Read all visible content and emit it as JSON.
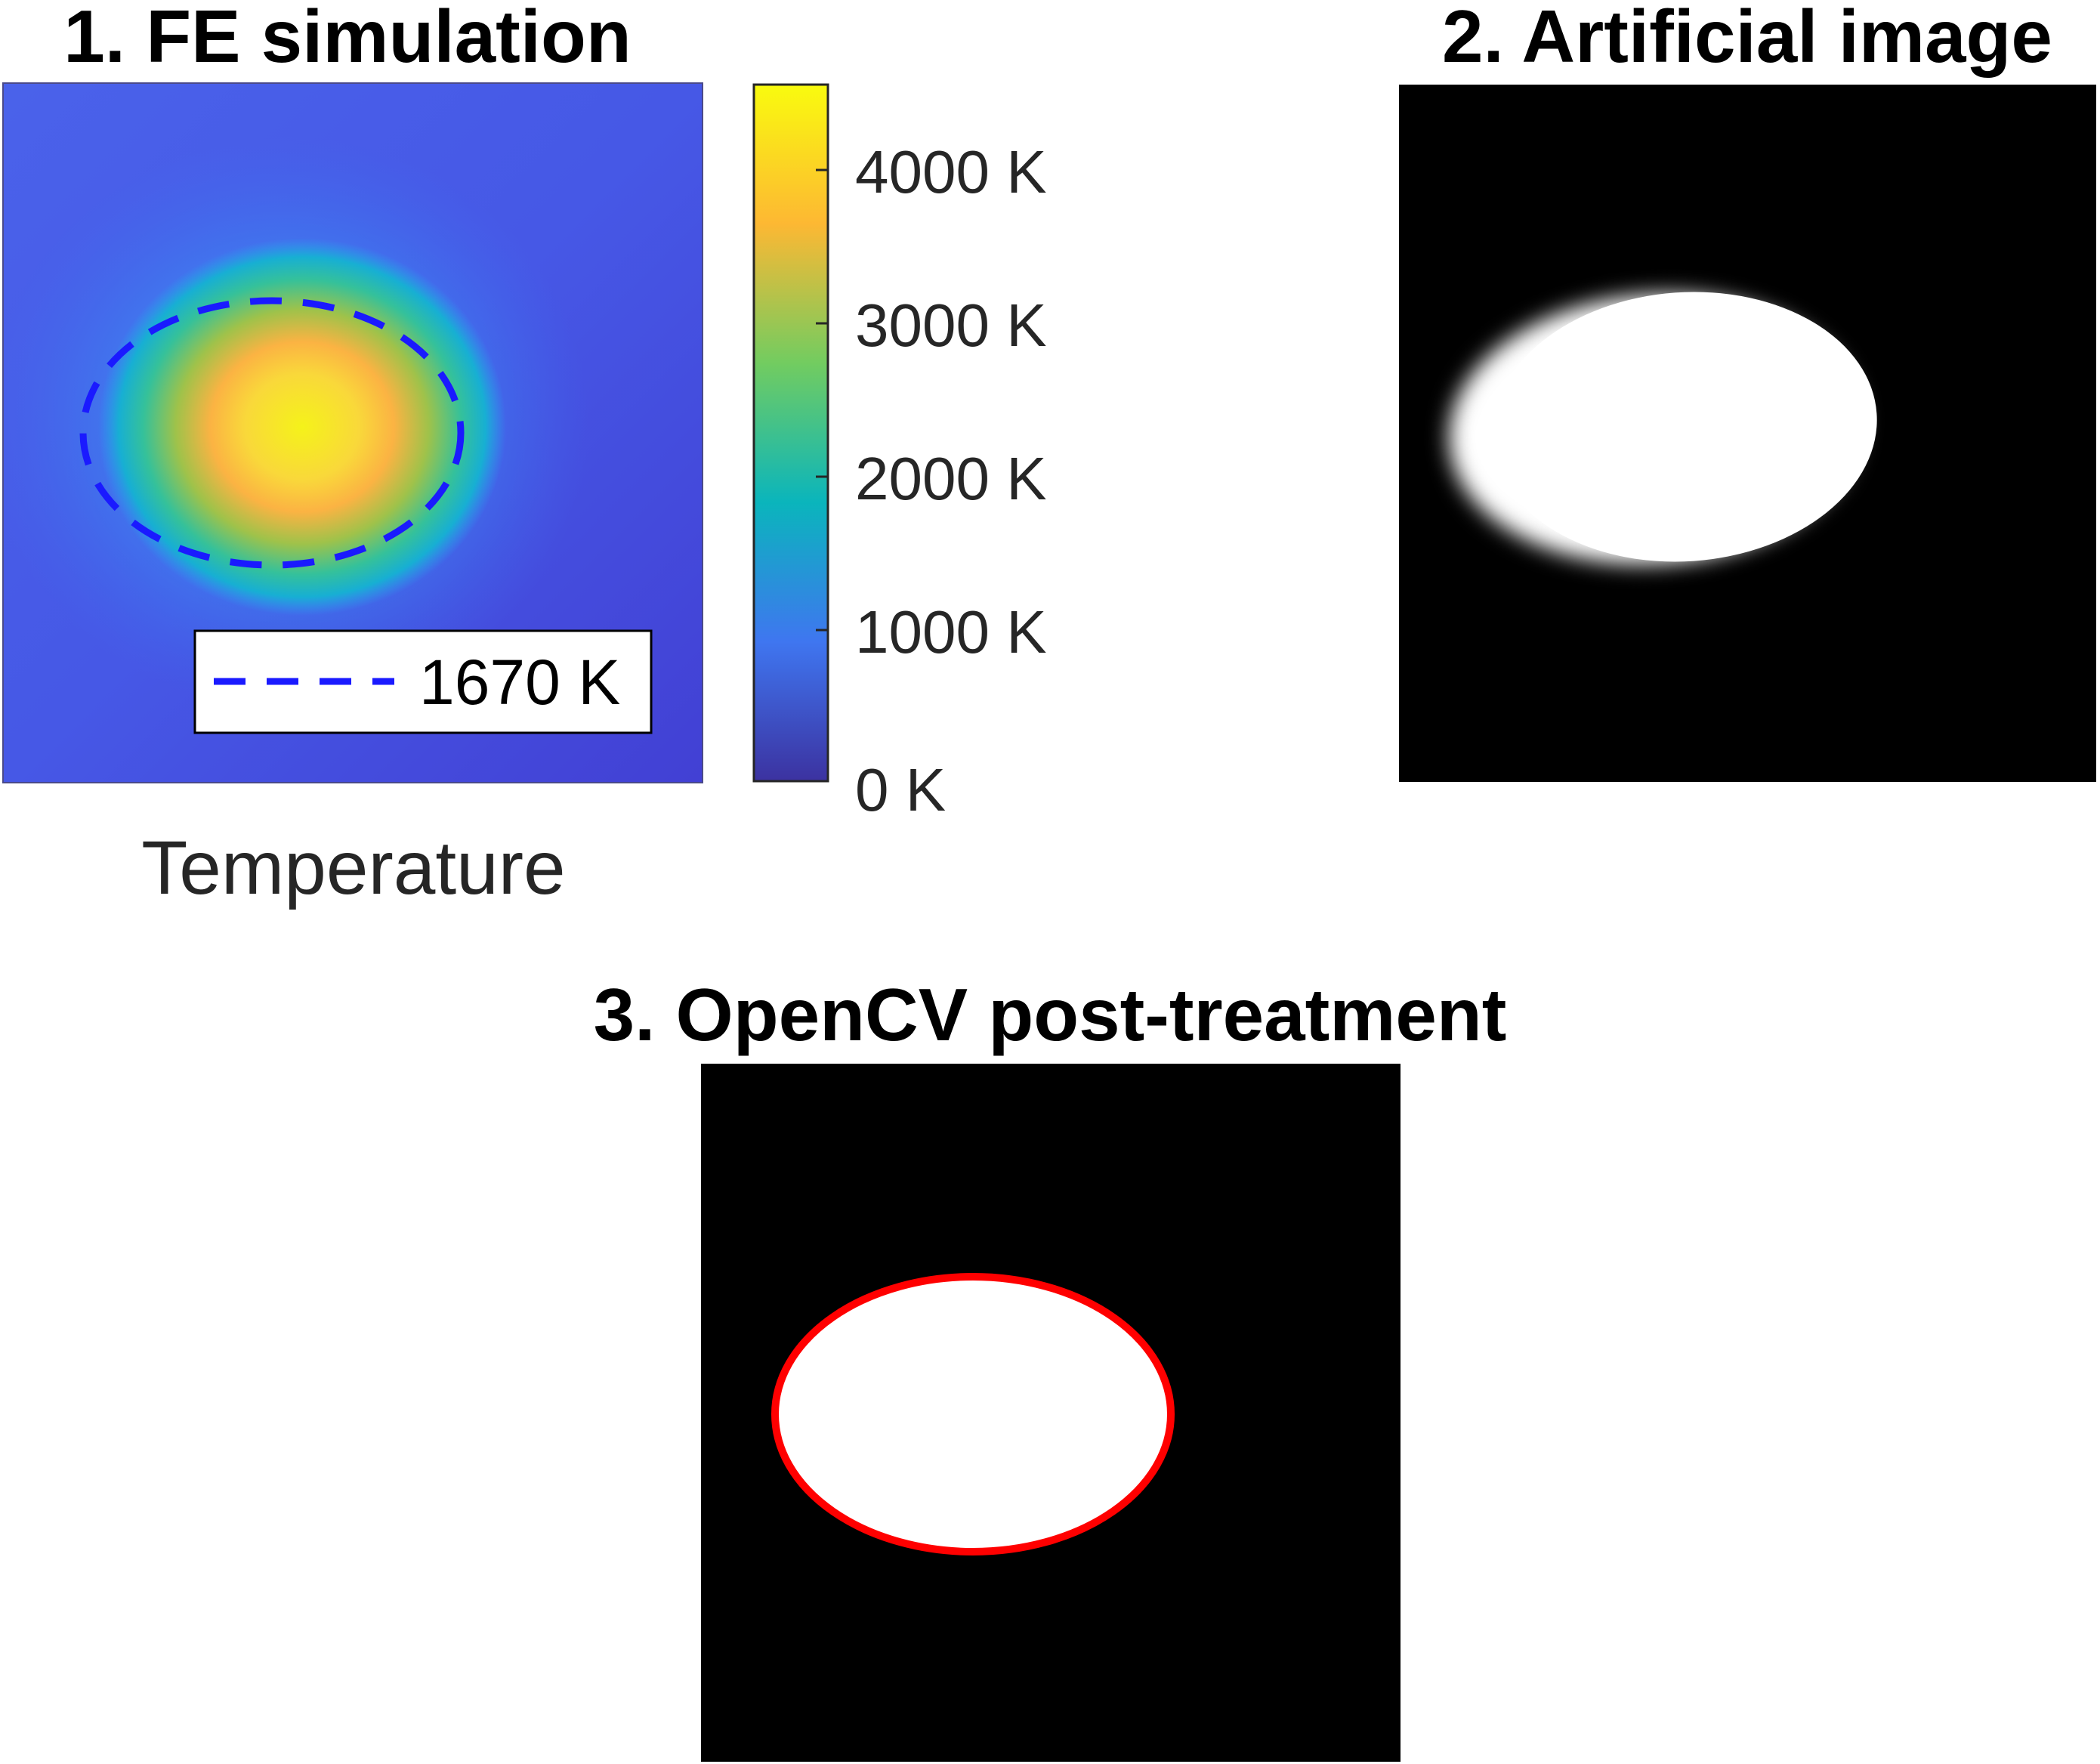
{
  "panel1": {
    "title": "1. FE simulation",
    "colorbar_label": "Temperature",
    "legend_label": "1670 K",
    "contour_color": "#1a1aff"
  },
  "panel2": {
    "title": "2. Artificial image"
  },
  "panel3": {
    "title": "3. OpenCV post-treatment",
    "contour_color": "#ff0000"
  },
  "colorbar": {
    "ticks": [
      "4000 K",
      "3000 K",
      "2000 K",
      "1000 K",
      "0 K"
    ],
    "colors": [
      "#f9fb0e",
      "#fdb833",
      "#72cc60",
      "#0ab5bc",
      "#3f76f0",
      "#3c32a0"
    ]
  }
}
